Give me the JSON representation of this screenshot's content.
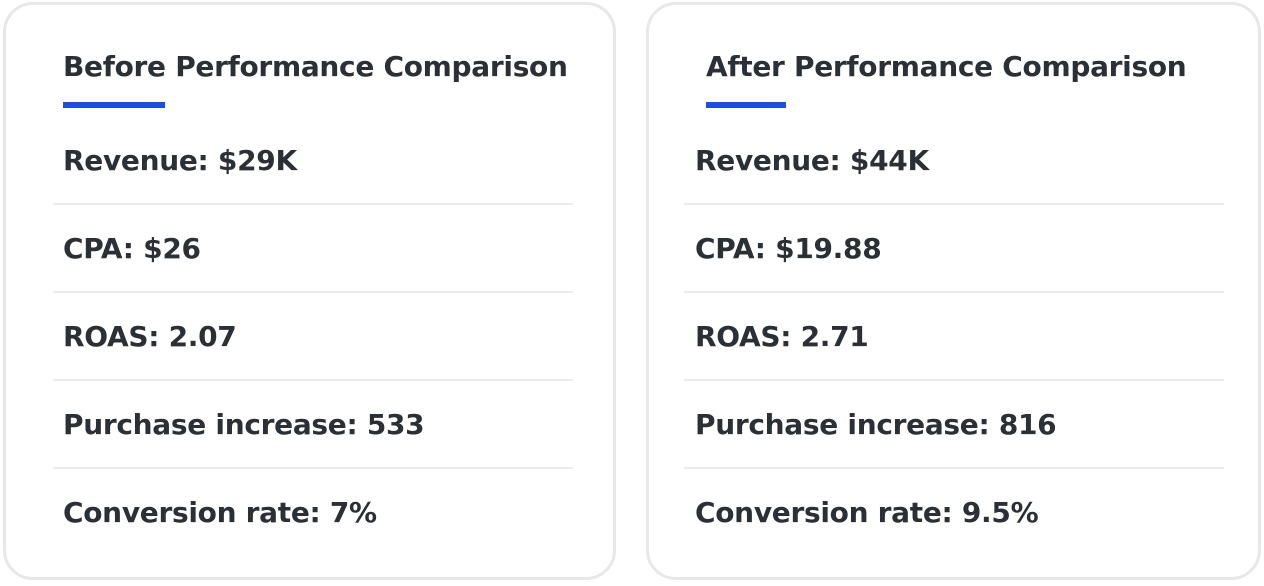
{
  "before": {
    "title": "Before Performance Comparison",
    "metrics": [
      "Revenue: $29K",
      "CPA: $26",
      "ROAS: 2.07",
      "Purchase increase: 533",
      "Conversion rate: 7%"
    ]
  },
  "after": {
    "title": "After Performance Comparison",
    "metrics": [
      "Revenue: $44K",
      "CPA: $19.88",
      "ROAS: 2.71",
      "Purchase increase: 816",
      "Conversion rate: 9.5%"
    ]
  },
  "colors": {
    "accent": "#1d4fd8",
    "text": "#2b2f36",
    "card_border": "#e8e8e8",
    "divider": "#ebebeb"
  }
}
